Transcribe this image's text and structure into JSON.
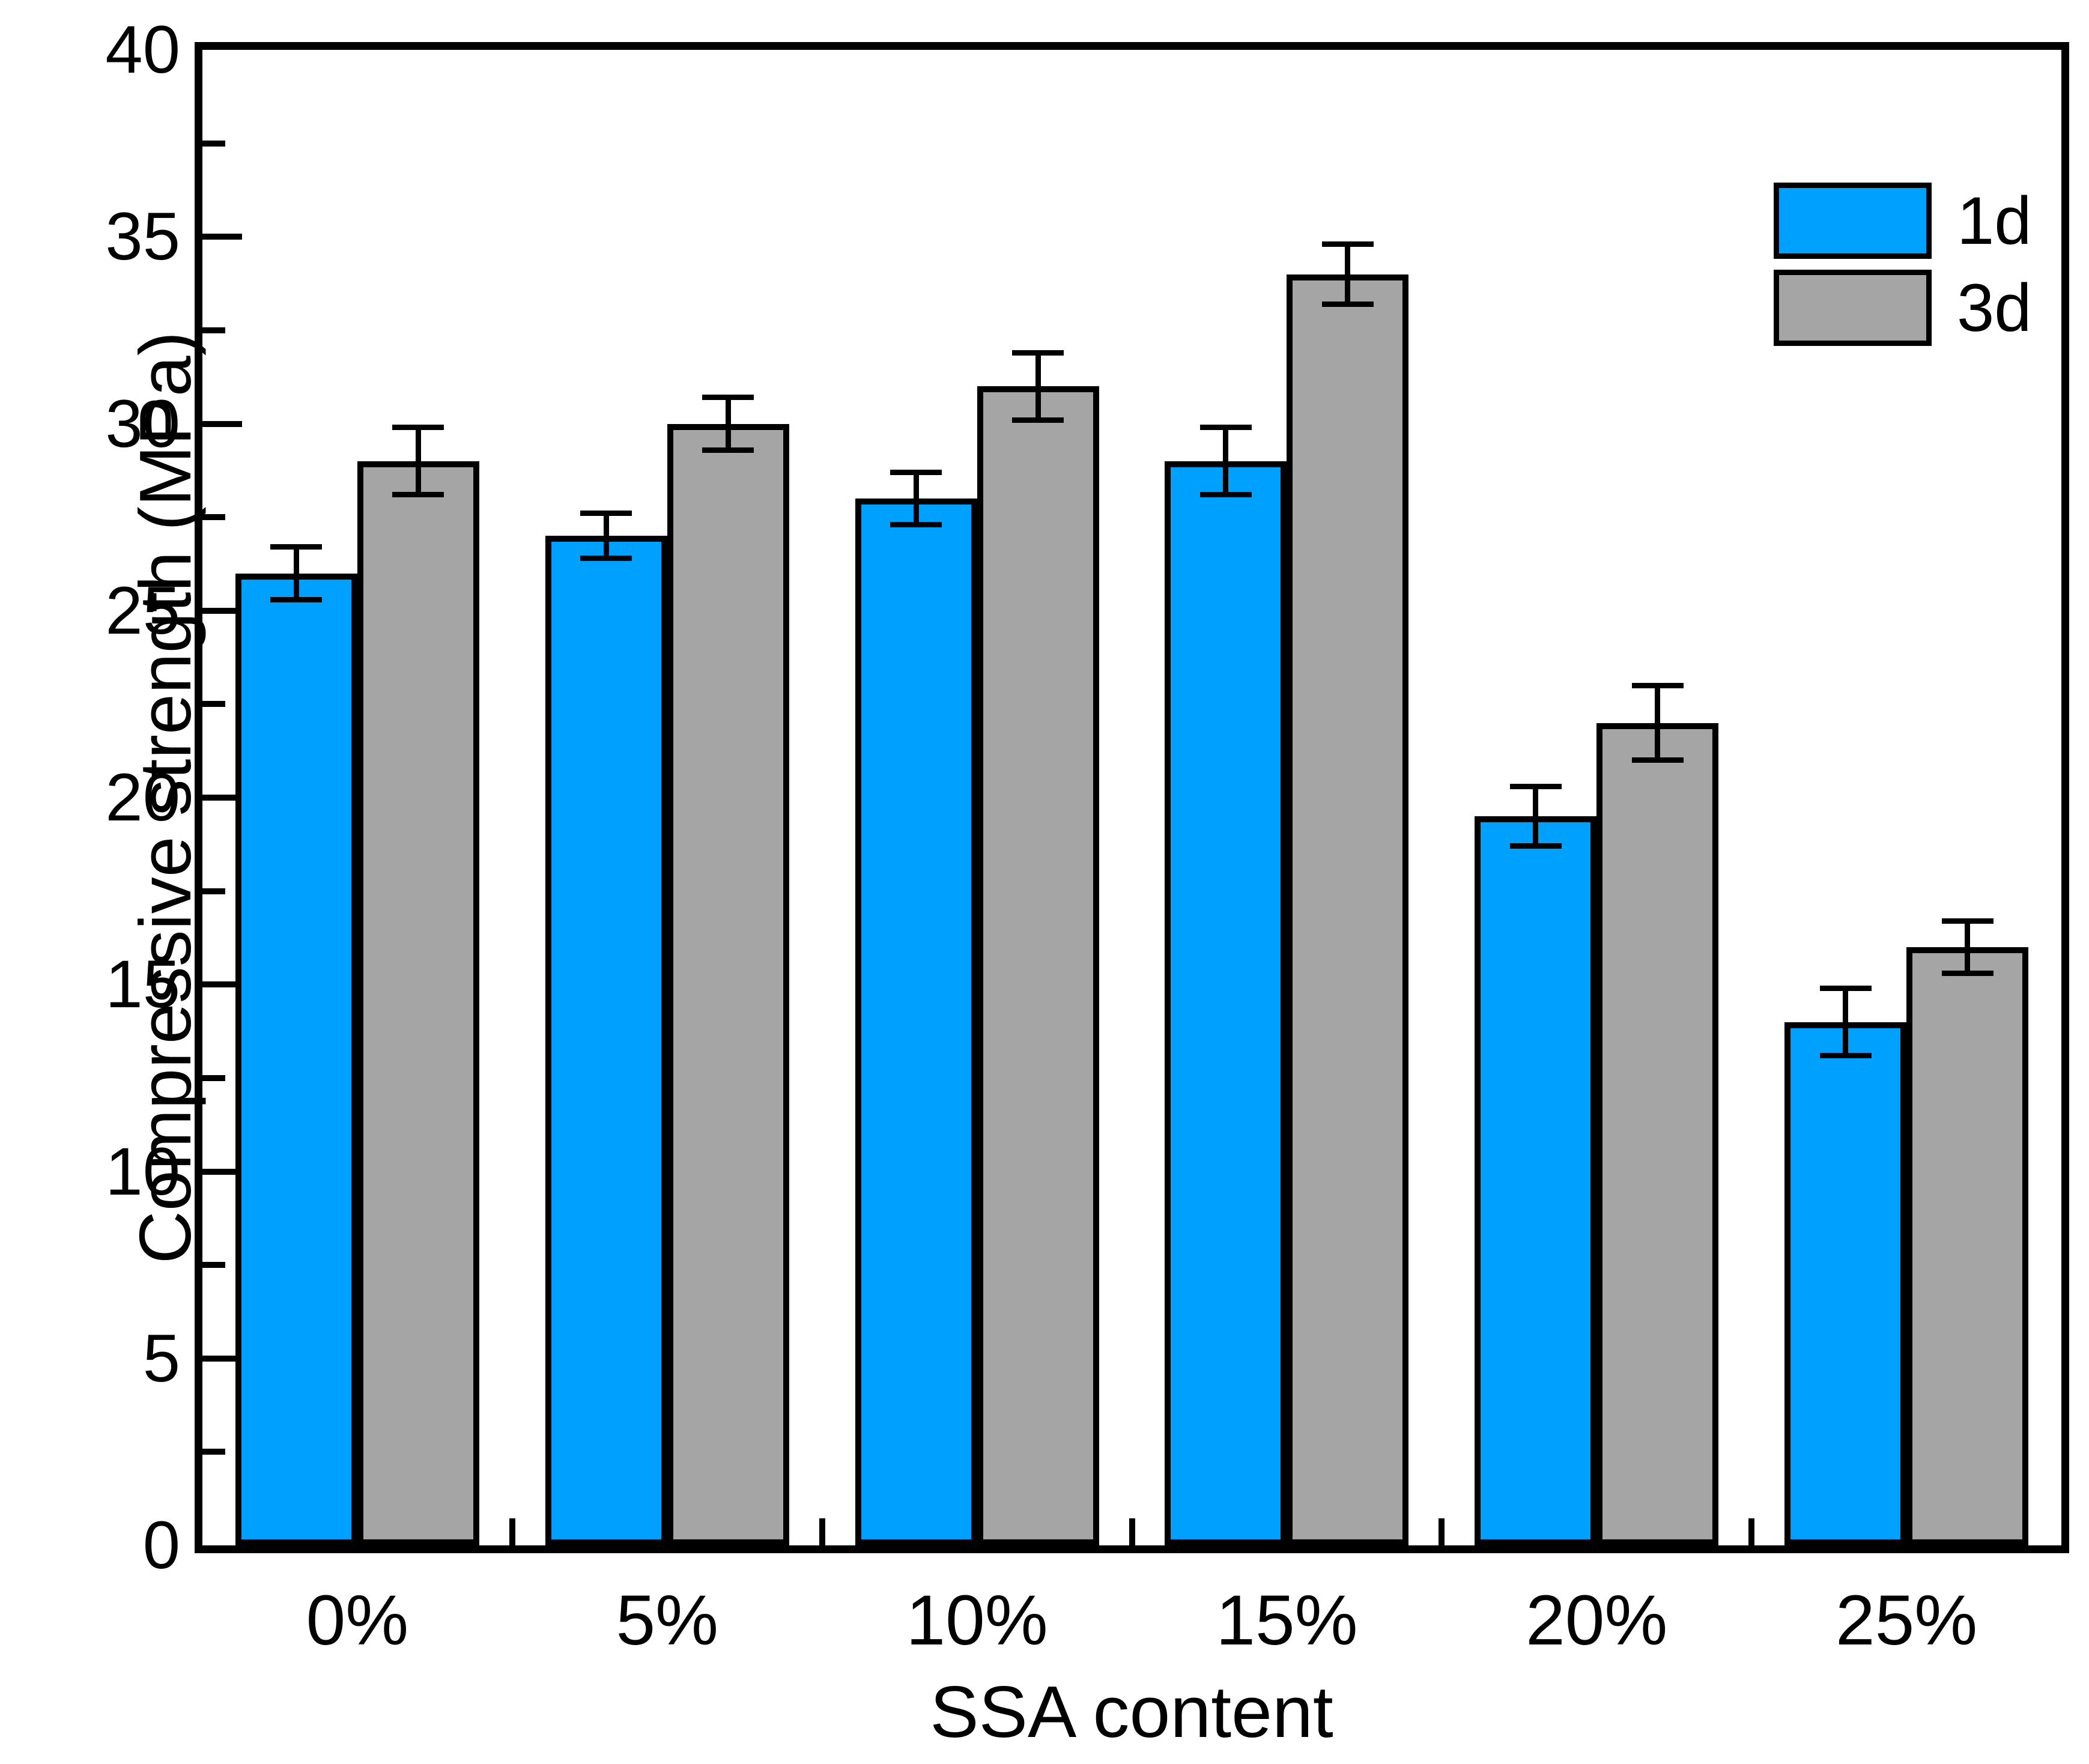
{
  "chart_data": {
    "type": "bar",
    "title": "",
    "xlabel": "SSA content",
    "ylabel": "Compressive strength (MPa)",
    "categories": [
      "0%",
      "5%",
      "10%",
      "15%",
      "20%",
      "25%"
    ],
    "series": [
      {
        "name": "1d",
        "color": "#00A0FF",
        "values": [
          26,
          27,
          28,
          29,
          19.5,
          14
        ],
        "errors": [
          0.7,
          0.6,
          0.7,
          0.9,
          0.8,
          0.9
        ]
      },
      {
        "name": "3d",
        "color": "#A5A5A5",
        "values": [
          29,
          30,
          31,
          34,
          22,
          16
        ],
        "errors": [
          0.9,
          0.7,
          0.9,
          0.8,
          1.0,
          0.7
        ]
      }
    ],
    "ylim": [
      0,
      40
    ],
    "y_major_step": 5,
    "y_minor_step": 2.5,
    "y_tick_labels": [
      "0",
      "5",
      "10",
      "15",
      "20",
      "25",
      "30",
      "35",
      "40"
    ],
    "grid": false,
    "legend_position": "top-right",
    "error_bars": true,
    "bar_edge_color": "#000000",
    "axis_color": "#000000",
    "background_color": "#FFFFFF"
  }
}
